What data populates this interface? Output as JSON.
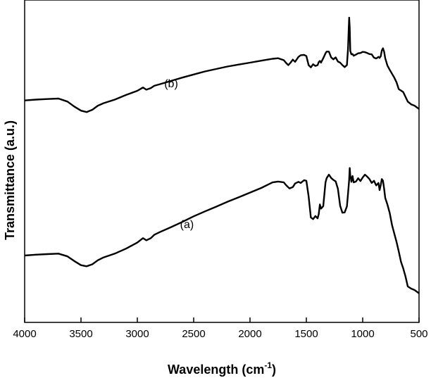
{
  "chart_data": {
    "type": "line",
    "xlabel": "Wavelength (cm",
    "xlabel_superscript": "-1",
    "xlabel_suffix": ")",
    "ylabel": "Transmittance (a.u.)",
    "xlim": [
      4000,
      500
    ],
    "x_reversed": true,
    "ylim": [
      0,
      100
    ],
    "x_ticks": [
      4000,
      3500,
      3000,
      2500,
      2000,
      1500,
      1000,
      500
    ],
    "y_ticks_shown": false,
    "grid": false,
    "legend": "none",
    "line_color": "#000000",
    "annotations": [
      {
        "text": "(b)",
        "x": 2700,
        "y": 73.5
      },
      {
        "text": "(a)",
        "x": 2560,
        "y": 22.5
      }
    ],
    "series": [
      {
        "x": [
          4000,
          3900,
          3800,
          3700,
          3620,
          3560,
          3500,
          3450,
          3400,
          3350,
          3300,
          3200,
          3100,
          3000,
          2950,
          2920,
          2880,
          2850,
          2800,
          2700,
          2600,
          2500,
          2400,
          2300,
          2200,
          2100,
          2000,
          1900,
          1800,
          1750,
          1700,
          1680,
          1650,
          1620,
          1600,
          1570,
          1550,
          1520,
          1500,
          1480,
          1460,
          1440,
          1420,
          1400,
          1390,
          1380,
          1370,
          1350,
          1330,
          1320,
          1300,
          1280,
          1260,
          1240,
          1220,
          1200,
          1180,
          1160,
          1140,
          1130,
          1120,
          1115,
          1110,
          1105,
          1100,
          1090,
          1080,
          1060,
          1040,
          1020,
          1000,
          980,
          960,
          940,
          920,
          900,
          880,
          860,
          850,
          840,
          830,
          820,
          810,
          800,
          780,
          760,
          740,
          720,
          700,
          680,
          660,
          640,
          620,
          600,
          570,
          540,
          500
        ],
        "y": [
          12.5,
          12.8,
          13.0,
          13.2,
          12.2,
          10.5,
          9.0,
          8.6,
          9.3,
          10.8,
          11.8,
          13.2,
          15.0,
          17.2,
          18.8,
          18.0,
          18.8,
          20.0,
          21.0,
          22.8,
          24.7,
          26.7,
          28.5,
          30.2,
          32.0,
          33.6,
          35.3,
          37.0,
          39.0,
          39.3,
          39.0,
          38.0,
          36.8,
          37.3,
          38.6,
          39.2,
          38.8,
          39.8,
          39.6,
          34.0,
          26.3,
          25.7,
          26.8,
          26.0,
          27.5,
          31.0,
          29.5,
          30.4,
          39.0,
          40.5,
          41.8,
          40.6,
          39.9,
          39.4,
          36.7,
          30.5,
          28.0,
          28.1,
          30.3,
          35.0,
          40.0,
          44.2,
          41.4,
          40.5,
          39.2,
          41.3,
          39.0,
          39.3,
          40.5,
          39.5,
          40.8,
          41.8,
          41.1,
          40.2,
          38.8,
          39.6,
          37.9,
          38.8,
          36.2,
          38.0,
          40.2,
          39.6,
          36.8,
          33.4,
          30.9,
          27.9,
          23.6,
          20.5,
          17.5,
          14.0,
          10.2,
          7.8,
          4.9,
          1.3,
          0.5,
          0.0,
          -1.2
        ]
      },
      {
        "x": [
          4000,
          3900,
          3800,
          3700,
          3620,
          3560,
          3500,
          3450,
          3400,
          3350,
          3300,
          3200,
          3100,
          3000,
          2950,
          2920,
          2880,
          2850,
          2800,
          2700,
          2600,
          2500,
          2400,
          2300,
          2200,
          2100,
          2000,
          1900,
          1800,
          1750,
          1700,
          1680,
          1660,
          1640,
          1620,
          1600,
          1570,
          1550,
          1520,
          1500,
          1480,
          1460,
          1440,
          1420,
          1400,
          1390,
          1380,
          1370,
          1350,
          1330,
          1320,
          1300,
          1280,
          1260,
          1240,
          1220,
          1200,
          1180,
          1160,
          1140,
          1130,
          1125,
          1120,
          1115,
          1110,
          1105,
          1100,
          1090,
          1080,
          1060,
          1040,
          1020,
          1000,
          980,
          960,
          940,
          920,
          900,
          880,
          860,
          850,
          840,
          830,
          820,
          810,
          800,
          780,
          760,
          740,
          720,
          700,
          680,
          660,
          640,
          620,
          600,
          570,
          540,
          500
        ],
        "y": [
          68.7,
          69.0,
          69.2,
          69.4,
          68.3,
          66.5,
          65.0,
          64.5,
          65.3,
          66.8,
          67.7,
          69.0,
          70.7,
          72.2,
          73.4,
          72.6,
          73.2,
          74.0,
          74.6,
          75.8,
          77.0,
          78.1,
          79.2,
          80.1,
          81.0,
          81.7,
          82.4,
          83.1,
          83.8,
          84.0,
          83.3,
          82.3,
          81.5,
          82.4,
          83.5,
          82.7,
          84.5,
          85.1,
          85.2,
          84.8,
          81.5,
          80.7,
          81.8,
          81.2,
          81.5,
          82.6,
          83.0,
          82.4,
          84.0,
          85.8,
          86.4,
          86.4,
          84.3,
          83.6,
          84.3,
          82.8,
          82.4,
          81.5,
          80.8,
          81.5,
          87.5,
          93.4,
          98.7,
          95.0,
          86.6,
          86.0,
          85.4,
          85.5,
          84.9,
          85.3,
          85.8,
          85.9,
          86.3,
          86.2,
          85.9,
          85.5,
          85.4,
          84.2,
          83.9,
          84.5,
          84.1,
          84.7,
          86.8,
          87.6,
          86.4,
          84.0,
          81.3,
          79.8,
          78.4,
          77.0,
          75.3,
          72.8,
          72.3,
          71.7,
          70.0,
          68.3,
          67.3,
          66.8,
          65.6
        ]
      }
    ]
  }
}
